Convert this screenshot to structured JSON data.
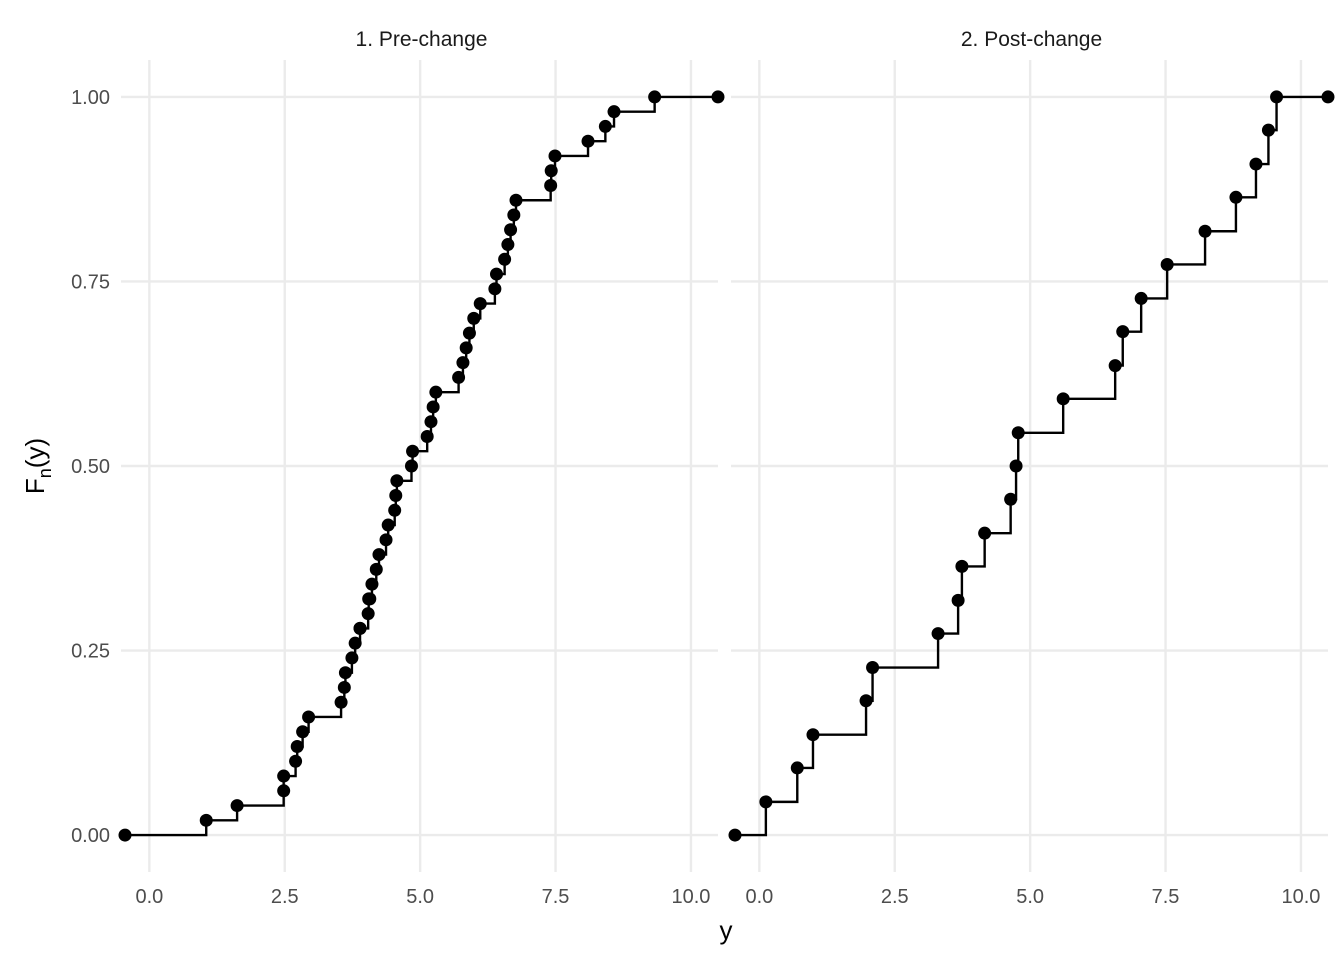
{
  "chart_data": {
    "type": "ecdf",
    "xlabel": "y",
    "ylabel": "Fn(y)",
    "ylabel_main": "F",
    "ylabel_sub": "n",
    "ylabel_tail": "(y)",
    "xlim": [
      -0.45,
      10.5
    ],
    "ylim": [
      -0.05,
      1.05
    ],
    "x_ticks": [
      "0.0",
      "2.5",
      "5.0",
      "7.5",
      "10.0"
    ],
    "y_ticks": [
      "0.00",
      "0.25",
      "0.50",
      "0.75",
      "1.00"
    ],
    "grid": true,
    "panels": [
      {
        "title": "1. Pre-change",
        "x": [
          -0.45,
          1.05,
          1.62,
          2.48,
          2.48,
          2.7,
          2.73,
          2.83,
          2.94,
          3.54,
          3.6,
          3.62,
          3.74,
          3.8,
          3.89,
          3.89,
          4.04,
          4.05,
          4.07,
          4.11,
          4.19,
          4.24,
          4.37,
          4.41,
          4.53,
          4.55,
          4.57,
          4.84,
          4.86,
          5.13,
          5.2,
          5.24,
          5.29,
          5.71,
          5.79,
          5.85,
          5.91,
          5.99,
          6.11,
          6.38,
          6.41,
          6.56,
          6.62,
          6.67,
          6.73,
          6.77,
          7.41,
          7.42,
          7.49,
          8.1,
          8.42,
          8.58,
          9.33,
          10.5
        ],
        "y": [
          0.0,
          0.02,
          0.04,
          0.06,
          0.08,
          0.1,
          0.12,
          0.14,
          0.16,
          0.18,
          0.2,
          0.22,
          0.24,
          0.26,
          0.28,
          0.28,
          0.3,
          0.32,
          0.32,
          0.34,
          0.36,
          0.38,
          0.4,
          0.42,
          0.44,
          0.46,
          0.48,
          0.5,
          0.52,
          0.54,
          0.56,
          0.58,
          0.6,
          0.62,
          0.64,
          0.66,
          0.68,
          0.7,
          0.72,
          0.74,
          0.76,
          0.78,
          0.8,
          0.82,
          0.84,
          0.86,
          0.88,
          0.9,
          0.92,
          0.94,
          0.96,
          0.98,
          1.0,
          1.0
        ]
      },
      {
        "title": "2. Post-change",
        "x": [
          -0.45,
          0.12,
          0.7,
          0.99,
          1.97,
          2.09,
          3.3,
          3.67,
          3.74,
          4.16,
          4.64,
          4.74,
          4.78,
          5.61,
          6.57,
          6.71,
          7.05,
          7.53,
          8.23,
          8.8,
          9.17,
          9.4,
          9.55,
          10.5
        ],
        "y": [
          0.0,
          0.045,
          0.091,
          0.136,
          0.182,
          0.227,
          0.273,
          0.318,
          0.364,
          0.409,
          0.455,
          0.5,
          0.545,
          0.591,
          0.636,
          0.682,
          0.727,
          0.773,
          0.818,
          0.864,
          0.909,
          0.955,
          1.0,
          1.0
        ]
      }
    ]
  }
}
